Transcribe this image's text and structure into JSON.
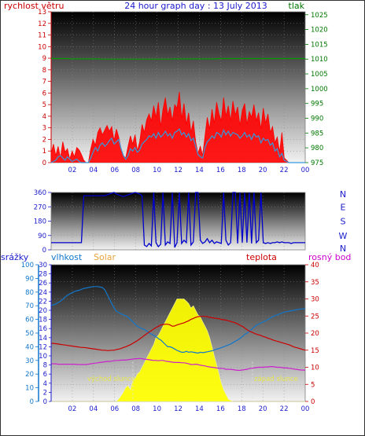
{
  "chart_data": [
    {
      "type": "line",
      "title": "24 hour graph day : 13 July 2013",
      "left_label": "rychlost větru",
      "right_label": "tlak",
      "x_ticks": [
        "02",
        "04",
        "06",
        "08",
        "10",
        "12",
        "14",
        "16",
        "18",
        "20",
        "22",
        "00"
      ],
      "left_ticks": [
        "0",
        "1",
        "2",
        "3",
        "4",
        "5",
        "6",
        "7",
        "8",
        "9",
        "10",
        "11",
        "12",
        "13"
      ],
      "right_ticks": [
        "975",
        "980",
        "985",
        "990",
        "995",
        "1000",
        "1005",
        "1010",
        "1015",
        "1020",
        "1025"
      ],
      "ylim_left": [
        0,
        13
      ],
      "ylim_right": [
        975,
        1026
      ],
      "series": [
        {
          "color": "#ff0000",
          "style": "filled",
          "values": [
            0.8,
            1.6,
            0.6,
            1.4,
            0.4,
            1.8,
            0.9,
            1.2,
            0.3,
            1.0,
            0.5,
            1.3,
            1.1,
            0.7,
            0.2,
            0.0,
            0.0,
            1.2,
            2.0,
            1.5,
            2.6,
            3.0,
            2.4,
            2.8,
            3.2,
            2.7,
            3.1,
            1.9,
            2.9,
            2.2,
            1.2,
            0.6,
            0.4,
            1.4,
            2.3,
            1.6,
            2.4,
            1.0,
            1.8,
            3.3,
            2.6,
            3.7,
            4.2,
            3.6,
            4.9,
            3.9,
            5.2,
            3.1,
            4.6,
            5.6,
            4.1,
            4.8,
            3.6,
            5.0,
            4.7,
            6.1,
            3.8,
            5.1,
            3.3,
            4.3,
            2.6,
            3.6,
            1.8,
            0.8,
            1.4,
            0.6,
            2.3,
            3.9,
            2.9,
            4.6,
            3.4,
            5.2,
            4.2,
            3.6,
            5.6,
            4.0,
            4.9,
            3.6,
            5.3,
            4.1,
            4.8,
            3.2,
            4.5,
            5.1,
            3.3,
            4.4,
            3.9,
            5.0,
            3.6,
            4.3,
            2.9,
            4.7,
            3.4,
            4.2,
            2.6,
            3.1,
            1.7,
            2.2,
            0.9,
            2.6,
            0.4,
            0.2,
            0.0,
            0.0,
            0.0,
            0.0,
            0.0,
            0.0,
            0.0,
            0.0
          ]
        },
        {
          "color": "#3399dd",
          "values": [
            0.0,
            0.1,
            0.2,
            0.5,
            0.6,
            0.4,
            0.2,
            0.5,
            0.3,
            0.1,
            0.2,
            0.3,
            0.1,
            0.0,
            0.0,
            0.0,
            0.0,
            0.4,
            0.9,
            1.3,
            1.0,
            1.5,
            1.7,
            1.4,
            1.6,
            1.9,
            2.1,
            1.6,
            1.8,
            2.0,
            1.2,
            0.6,
            0.3,
            0.6,
            1.2,
            1.0,
            1.3,
            0.9,
            1.1,
            1.6,
            1.8,
            2.0,
            2.3,
            2.2,
            2.5,
            2.1,
            2.6,
            2.2,
            2.4,
            2.7,
            2.3,
            2.5,
            2.1,
            2.6,
            2.7,
            2.9,
            2.4,
            2.6,
            2.2,
            2.5,
            1.9,
            2.1,
            1.4,
            0.7,
            0.5,
            0.4,
            1.3,
            1.8,
            2.0,
            2.3,
            2.1,
            2.6,
            2.5,
            2.2,
            2.8,
            2.4,
            2.7,
            2.3,
            2.6,
            2.5,
            2.4,
            2.1,
            2.3,
            2.6,
            2.2,
            2.4,
            2.0,
            2.5,
            2.2,
            2.3,
            1.7,
            2.1,
            1.9,
            2.0,
            1.5,
            1.7,
            1.0,
            1.2,
            0.5,
            0.8,
            0.2,
            0.1,
            0.0,
            0.0,
            0.0,
            0.0,
            0.0,
            0.0,
            0.0,
            0.0
          ]
        },
        {
          "color": "#009900",
          "axis": "right",
          "values": [
            1010.2,
            1010.2,
            1010.2,
            1010.2,
            1010.2,
            1010.2,
            1010.2,
            1010.2,
            1010.1,
            1010.1,
            1010.1,
            1010.1,
            1010.1,
            1010.1,
            1010.1,
            1010.1,
            1010.1,
            1010.1,
            1010.1,
            1010.1,
            1010.1,
            1010.0,
            1010.0,
            1010.0,
            1010.0,
            1010.0,
            1010.0,
            1010.0,
            1010.0,
            1010.0,
            1010.0,
            1010.0,
            1010.0,
            1010.0,
            1010.0,
            1010.0,
            1010.0,
            1010.0,
            1010.0,
            1010.0,
            1010.0,
            1010.0,
            1010.0,
            1010.0,
            1010.0,
            1010.0,
            1010.0,
            1010.0,
            1010.0,
            1010.0,
            1010.0,
            1010.0,
            1010.0,
            1010.1,
            1010.1,
            1010.1,
            1010.1,
            1010.1,
            1010.1,
            1010.1,
            1010.1,
            1010.1,
            1010.1,
            1010.1,
            1010.1,
            1010.1,
            1010.1,
            1010.1,
            1010.1,
            1010.1,
            1010.1,
            1010.1,
            1010.2,
            1010.2,
            1010.2,
            1010.2,
            1010.2,
            1010.2,
            1010.2,
            1010.2,
            1010.2,
            1010.2,
            1010.2,
            1010.2,
            1010.2,
            1010.2,
            1010.2,
            1010.2,
            1010.2,
            1010.2,
            1010.2,
            1010.2,
            1010.2,
            1010.2,
            1010.2,
            1010.2,
            1010.2,
            1010.2,
            1010.2,
            1010.2,
            1010.2,
            1010.2,
            1010.2,
            1010.2,
            1010.2,
            1010.2,
            1010.2,
            1010.2,
            1010.2,
            1010.2
          ]
        }
      ]
    },
    {
      "type": "line",
      "x_ticks": [],
      "left_ticks": [
        "0",
        "90",
        "180",
        "270",
        "360"
      ],
      "ylim": [
        0,
        360
      ],
      "direction_labels": [
        "N",
        "W",
        "S",
        "E",
        "N"
      ],
      "series": [
        {
          "color": "#0000cc",
          "values": [
            45,
            45,
            45,
            45,
            45,
            45,
            45,
            45,
            45,
            45,
            45,
            45,
            45,
            45,
            340,
            340,
            340,
            340,
            340,
            340,
            340,
            340,
            340,
            340,
            345,
            350,
            355,
            360,
            350,
            345,
            340,
            335,
            340,
            345,
            350,
            355,
            360,
            355,
            350,
            340,
            30,
            20,
            40,
            25,
            360,
            45,
            20,
            35,
            360,
            30,
            50,
            40,
            360,
            15,
            45,
            360,
            40,
            60,
            45,
            360,
            30,
            50,
            360,
            360,
            60,
            40,
            50,
            70,
            45,
            60,
            40,
            50,
            45,
            40,
            360,
            60,
            30,
            45,
            360,
            360,
            40,
            360,
            45,
            360,
            45,
            360,
            40,
            360,
            45,
            60,
            360,
            45,
            40,
            45,
            40,
            45,
            45,
            50,
            45,
            50,
            45,
            45,
            45,
            40,
            45,
            45,
            45,
            45,
            45,
            45
          ]
        }
      ]
    },
    {
      "type": "area",
      "axis_labels": [
        "srážky",
        "vlhkost",
        "Solar",
        "teplota",
        "rosný bod"
      ],
      "x_ticks": [
        "02",
        "04",
        "06",
        "08",
        "10",
        "12",
        "14",
        "16",
        "18",
        "20",
        "22",
        "00"
      ],
      "rain_ticks": [
        "0",
        "10",
        "20",
        "30",
        "40",
        "50",
        "60",
        "70",
        "80",
        "90",
        "100"
      ],
      "humidity_ticks": [
        "0",
        "2",
        "4",
        "6",
        "8",
        "10",
        "12",
        "14",
        "16",
        "18",
        "20",
        "22",
        "24",
        "26",
        "28",
        "30"
      ],
      "temp_ticks": [
        "0",
        "5",
        "10",
        "15",
        "20",
        "25",
        "30",
        "35",
        "40"
      ],
      "annotations": [
        "východ slunce",
        "západ slunce"
      ],
      "ylim_humidity": [
        0,
        30
      ],
      "ylim_temp": [
        0,
        40
      ],
      "series": [
        {
          "color": "#ffff00",
          "values": [
            0,
            0,
            0,
            0,
            0,
            0,
            0,
            0,
            0,
            0,
            0,
            0,
            0,
            0,
            0,
            0,
            0,
            0,
            0,
            0,
            0,
            0,
            0,
            0,
            0,
            0,
            0,
            0,
            0,
            0.5,
            1.2,
            2.0,
            3.0,
            3.5,
            2.5,
            4.5,
            5.0,
            6.0,
            6.5,
            7.5,
            8.5,
            9.5,
            10.5,
            11.5,
            12.5,
            14.0,
            14.5,
            15.5,
            16.5,
            17.5,
            18.5,
            19.5,
            20.5,
            21.5,
            22.5,
            22.5,
            22.5,
            22.5,
            22.0,
            21.5,
            20.5,
            21.0,
            20.0,
            19.0,
            18.5,
            17.5,
            16.5,
            15.5,
            14.0,
            12.0,
            10.0,
            8.0,
            6.0,
            4.0,
            2.5,
            1.5,
            0.5,
            0.2,
            0,
            0,
            0,
            0,
            0,
            0,
            0,
            0,
            0,
            0,
            0,
            0,
            0,
            0,
            0,
            0,
            0,
            0,
            0,
            0,
            0,
            0,
            0,
            0,
            0,
            0,
            0,
            0,
            0,
            0,
            0,
            0
          ]
        },
        {
          "color": "#1177cc",
          "values": [
            21.1,
            21.2,
            21.4,
            21.7,
            22.0,
            22.4,
            22.9,
            23.3,
            23.6,
            23.9,
            24.1,
            24.3,
            24.4,
            24.6,
            24.8,
            24.9,
            25.0,
            25.1,
            25.2,
            25.2,
            25.2,
            25.1,
            25.0,
            24.5,
            23.5,
            22.5,
            21.5,
            20.5,
            19.8,
            19.5,
            19.2,
            19.0,
            18.8,
            18.5,
            18.0,
            17.5,
            17.0,
            16.5,
            16.2,
            16.0,
            15.8,
            15.5,
            15.0,
            14.8,
            14.5,
            14.2,
            13.8,
            13.5,
            13.0,
            12.5,
            12.0,
            12.0,
            11.8,
            11.5,
            11.2,
            11.0,
            10.8,
            10.8,
            11.0,
            10.8,
            10.9,
            10.8,
            10.7,
            10.6,
            10.8,
            10.7,
            10.8,
            10.9,
            11.0,
            11.1,
            11.3,
            11.5,
            11.6,
            11.8,
            12.0,
            12.2,
            12.4,
            12.6,
            12.9,
            13.2,
            13.5,
            13.8,
            14.2,
            14.7,
            15.0,
            15.4,
            15.8,
            16.3,
            16.7,
            17.0,
            17.2,
            17.5,
            17.7,
            18.0,
            18.3,
            18.6,
            18.8,
            19.0,
            19.2,
            19.4,
            19.6,
            19.7,
            19.8,
            19.9,
            20.0,
            20.1,
            20.2,
            20.3,
            20.3,
            20.4
          ]
        },
        {
          "color": "#cc0000",
          "values": [
            17.0,
            17.0,
            16.9,
            16.8,
            16.7,
            16.6,
            16.5,
            16.4,
            16.3,
            16.2,
            16.1,
            16.0,
            15.9,
            15.8,
            15.8,
            15.7,
            15.6,
            15.5,
            15.4,
            15.3,
            15.2,
            15.1,
            15.0,
            15.0,
            14.9,
            14.9,
            15.0,
            15.0,
            15.2,
            15.3,
            15.5,
            15.8,
            16.0,
            16.3,
            16.6,
            17.0,
            17.4,
            17.8,
            18.3,
            18.8,
            19.3,
            19.8,
            20.3,
            20.7,
            21.2,
            21.6,
            22.0,
            22.4,
            22.5,
            22.6,
            22.6,
            22.4,
            22.0,
            22.1,
            22.4,
            22.6,
            22.8,
            23.0,
            23.3,
            23.6,
            24.0,
            24.3,
            24.6,
            24.8,
            24.9,
            24.9,
            24.9,
            24.8,
            24.6,
            24.5,
            24.4,
            24.3,
            24.2,
            24.0,
            23.9,
            23.8,
            23.6,
            23.4,
            23.2,
            23.0,
            22.7,
            22.3,
            22.0,
            21.5,
            21.0,
            20.6,
            20.3,
            20.0,
            19.7,
            19.5,
            19.3,
            19.0,
            18.8,
            18.5,
            18.3,
            18.0,
            17.8,
            17.6,
            17.4,
            17.2,
            17.0,
            16.8,
            16.6,
            16.3,
            16.0,
            15.8,
            15.6,
            15.4,
            15.2,
            15.0
          ]
        },
        {
          "color": "#cc22cc",
          "values": [
            11.0,
            11.0,
            11.0,
            10.9,
            10.9,
            10.9,
            10.9,
            10.9,
            10.9,
            10.9,
            10.9,
            10.8,
            10.8,
            10.8,
            10.8,
            10.8,
            10.9,
            11.0,
            11.1,
            11.2,
            11.3,
            11.4,
            11.5,
            11.6,
            11.7,
            11.7,
            11.8,
            11.9,
            12.0,
            12.0,
            12.1,
            12.1,
            12.1,
            12.2,
            12.3,
            12.4,
            12.5,
            12.5,
            12.6,
            12.5,
            12.4,
            12.3,
            12.2,
            12.1,
            12.0,
            12.0,
            11.9,
            12.0,
            12.0,
            11.8,
            11.7,
            11.6,
            11.5,
            11.4,
            11.4,
            11.4,
            11.3,
            11.3,
            11.2,
            11.0,
            10.8,
            10.8,
            10.9,
            10.8,
            10.6,
            10.5,
            10.4,
            10.2,
            10.1,
            10.0,
            9.9,
            9.8,
            9.7,
            9.7,
            9.6,
            9.4,
            9.4,
            9.4,
            9.3,
            9.2,
            9.1,
            9.1,
            9.2,
            9.3,
            9.4,
            9.6,
            9.7,
            9.8,
            9.9,
            10.0,
            10.0,
            10.0,
            10.1,
            10.1,
            10.2,
            10.2,
            10.1,
            10.0,
            10.0,
            9.9,
            9.8,
            9.8,
            9.7,
            9.6,
            9.5,
            9.4,
            9.3,
            9.2,
            9.2,
            9.1
          ]
        }
      ]
    }
  ]
}
